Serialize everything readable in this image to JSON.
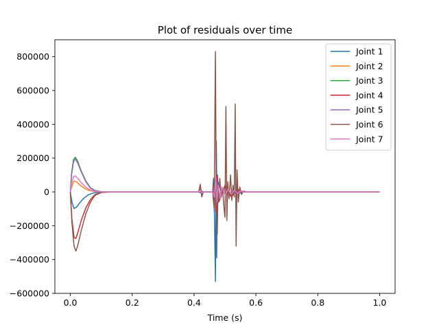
{
  "chart_data": {
    "type": "line",
    "title": "Plot of residuals over time",
    "xlabel": "Time (s)",
    "ylabel": "",
    "xlim": [
      -0.05,
      1.05
    ],
    "ylim": [
      -600000,
      900000
    ],
    "xticks": [
      0.0,
      0.2,
      0.4,
      0.6,
      0.8,
      1.0
    ],
    "xtick_labels": [
      "0.0",
      "0.2",
      "0.4",
      "0.6",
      "0.8",
      "1.0"
    ],
    "yticks": [
      -600000,
      -400000,
      -200000,
      0,
      200000,
      400000,
      600000,
      800000
    ],
    "ytick_labels": [
      "−600000",
      "−400000",
      "−200000",
      "0",
      "200000",
      "400000",
      "600000",
      "800000"
    ],
    "grid": false,
    "legend_position": "top-right",
    "series": [
      {
        "name": "Joint 1",
        "color": "#1f77b4",
        "points": [
          [
            0,
            0
          ],
          [
            0.005,
            -60000
          ],
          [
            0.012,
            -98000
          ],
          [
            0.02,
            -90000
          ],
          [
            0.03,
            -65000
          ],
          [
            0.045,
            -35000
          ],
          [
            0.06,
            -15000
          ],
          [
            0.08,
            -4000
          ],
          [
            0.1,
            -1000
          ],
          [
            0.13,
            0
          ],
          [
            0.415,
            0
          ],
          [
            0.42,
            -5000
          ],
          [
            0.425,
            5000
          ],
          [
            0.43,
            0
          ],
          [
            0.46,
            0
          ],
          [
            0.463,
            80000
          ],
          [
            0.466,
            -150000
          ],
          [
            0.469,
            -530000
          ],
          [
            0.472,
            300000
          ],
          [
            0.475,
            -250000
          ],
          [
            0.478,
            60000
          ],
          [
            0.482,
            -30000
          ],
          [
            0.49,
            20000
          ],
          [
            0.5,
            -15000
          ],
          [
            0.51,
            10000
          ],
          [
            0.52,
            -10000
          ],
          [
            0.53,
            8000
          ],
          [
            0.545,
            -5000
          ],
          [
            0.56,
            0
          ],
          [
            1.0,
            0
          ]
        ]
      },
      {
        "name": "Joint 2",
        "color": "#ff7f0e",
        "points": [
          [
            0,
            0
          ],
          [
            0.005,
            35000
          ],
          [
            0.012,
            65000
          ],
          [
            0.02,
            60000
          ],
          [
            0.03,
            42000
          ],
          [
            0.045,
            22000
          ],
          [
            0.06,
            9000
          ],
          [
            0.08,
            2000
          ],
          [
            0.1,
            500
          ],
          [
            0.13,
            0
          ],
          [
            0.415,
            0
          ],
          [
            0.42,
            8000
          ],
          [
            0.425,
            -5000
          ],
          [
            0.43,
            0
          ],
          [
            0.46,
            0
          ],
          [
            0.466,
            20000
          ],
          [
            0.47,
            -30000
          ],
          [
            0.474,
            25000
          ],
          [
            0.48,
            -15000
          ],
          [
            0.5,
            10000
          ],
          [
            0.52,
            -8000
          ],
          [
            0.54,
            5000
          ],
          [
            0.56,
            0
          ],
          [
            1.0,
            0
          ]
        ]
      },
      {
        "name": "Joint 3",
        "color": "#2ca02c",
        "points": [
          [
            0,
            0
          ],
          [
            0.004,
            110000
          ],
          [
            0.01,
            190000
          ],
          [
            0.016,
            205000
          ],
          [
            0.024,
            180000
          ],
          [
            0.035,
            125000
          ],
          [
            0.05,
            65000
          ],
          [
            0.065,
            25000
          ],
          [
            0.08,
            8000
          ],
          [
            0.1,
            1500
          ],
          [
            0.13,
            0
          ],
          [
            0.415,
            0
          ],
          [
            0.42,
            25000
          ],
          [
            0.425,
            -10000
          ],
          [
            0.43,
            0
          ],
          [
            0.46,
            0
          ],
          [
            0.466,
            50000
          ],
          [
            0.47,
            -80000
          ],
          [
            0.474,
            60000
          ],
          [
            0.48,
            -40000
          ],
          [
            0.5,
            30000
          ],
          [
            0.52,
            -20000
          ],
          [
            0.54,
            10000
          ],
          [
            0.56,
            0
          ],
          [
            1.0,
            0
          ]
        ]
      },
      {
        "name": "Joint 4",
        "color": "#d62728",
        "points": [
          [
            0,
            0
          ],
          [
            0.005,
            -160000
          ],
          [
            0.012,
            -270000
          ],
          [
            0.018,
            -275000
          ],
          [
            0.025,
            -235000
          ],
          [
            0.035,
            -170000
          ],
          [
            0.05,
            -95000
          ],
          [
            0.065,
            -45000
          ],
          [
            0.08,
            -15000
          ],
          [
            0.1,
            -3000
          ],
          [
            0.13,
            0
          ],
          [
            0.415,
            0
          ],
          [
            0.42,
            40000
          ],
          [
            0.425,
            -20000
          ],
          [
            0.43,
            0
          ],
          [
            0.46,
            0
          ],
          [
            0.466,
            70000
          ],
          [
            0.47,
            -120000
          ],
          [
            0.474,
            90000
          ],
          [
            0.48,
            -60000
          ],
          [
            0.5,
            40000
          ],
          [
            0.52,
            -30000
          ],
          [
            0.54,
            15000
          ],
          [
            0.56,
            0
          ],
          [
            1.0,
            0
          ]
        ]
      },
      {
        "name": "Joint 5",
        "color": "#9467bd",
        "points": [
          [
            0,
            0
          ],
          [
            0.004,
            100000
          ],
          [
            0.01,
            175000
          ],
          [
            0.016,
            195000
          ],
          [
            0.024,
            170000
          ],
          [
            0.035,
            120000
          ],
          [
            0.05,
            60000
          ],
          [
            0.065,
            22000
          ],
          [
            0.08,
            6000
          ],
          [
            0.1,
            1000
          ],
          [
            0.13,
            0
          ],
          [
            0.415,
            0
          ],
          [
            0.42,
            20000
          ],
          [
            0.425,
            -10000
          ],
          [
            0.43,
            0
          ],
          [
            0.46,
            0
          ],
          [
            0.466,
            40000
          ],
          [
            0.47,
            -60000
          ],
          [
            0.474,
            50000
          ],
          [
            0.48,
            -30000
          ],
          [
            0.5,
            25000
          ],
          [
            0.52,
            -15000
          ],
          [
            0.54,
            8000
          ],
          [
            0.56,
            0
          ],
          [
            1.0,
            0
          ]
        ]
      },
      {
        "name": "Joint 6",
        "color": "#8c564b",
        "points": [
          [
            0,
            0
          ],
          [
            0.005,
            -180000
          ],
          [
            0.012,
            -320000
          ],
          [
            0.018,
            -350000
          ],
          [
            0.025,
            -310000
          ],
          [
            0.035,
            -230000
          ],
          [
            0.05,
            -130000
          ],
          [
            0.065,
            -60000
          ],
          [
            0.08,
            -20000
          ],
          [
            0.1,
            -4000
          ],
          [
            0.13,
            0
          ],
          [
            0.415,
            0
          ],
          [
            0.42,
            45000
          ],
          [
            0.425,
            -30000
          ],
          [
            0.43,
            0
          ],
          [
            0.46,
            0
          ],
          [
            0.465,
            -100000
          ],
          [
            0.469,
            830000
          ],
          [
            0.473,
            -390000
          ],
          [
            0.476,
            100000
          ],
          [
            0.479,
            -60000
          ],
          [
            0.483,
            80000
          ],
          [
            0.488,
            -30000
          ],
          [
            0.492,
            20000
          ],
          [
            0.497,
            -100000
          ],
          [
            0.5,
            -150000
          ],
          [
            0.503,
            505000
          ],
          [
            0.506,
            -170000
          ],
          [
            0.509,
            60000
          ],
          [
            0.513,
            -40000
          ],
          [
            0.518,
            100000
          ],
          [
            0.522,
            -50000
          ],
          [
            0.526,
            40000
          ],
          [
            0.53,
            -30000
          ],
          [
            0.533,
            520000
          ],
          [
            0.536,
            -320000
          ],
          [
            0.539,
            130000
          ],
          [
            0.543,
            -60000
          ],
          [
            0.548,
            30000
          ],
          [
            0.553,
            -15000
          ],
          [
            0.56,
            5000
          ],
          [
            0.57,
            0
          ],
          [
            1.0,
            0
          ]
        ]
      },
      {
        "name": "Joint 7",
        "color": "#e377c2",
        "points": [
          [
            0,
            0
          ],
          [
            0.004,
            50000
          ],
          [
            0.01,
            88000
          ],
          [
            0.016,
            95000
          ],
          [
            0.024,
            80000
          ],
          [
            0.035,
            55000
          ],
          [
            0.05,
            28000
          ],
          [
            0.065,
            10000
          ],
          [
            0.08,
            3000
          ],
          [
            0.1,
            500
          ],
          [
            0.13,
            0
          ],
          [
            0.415,
            0
          ],
          [
            0.42,
            10000
          ],
          [
            0.425,
            -5000
          ],
          [
            0.43,
            0
          ],
          [
            0.46,
            0
          ],
          [
            0.466,
            -30000
          ],
          [
            0.47,
            90000
          ],
          [
            0.474,
            -60000
          ],
          [
            0.478,
            40000
          ],
          [
            0.485,
            -40000
          ],
          [
            0.49,
            30000
          ],
          [
            0.5,
            -20000
          ],
          [
            0.51,
            15000
          ],
          [
            0.52,
            -15000
          ],
          [
            0.53,
            10000
          ],
          [
            0.54,
            -8000
          ],
          [
            0.55,
            5000
          ],
          [
            0.56,
            0
          ],
          [
            1.0,
            0
          ]
        ]
      }
    ]
  }
}
